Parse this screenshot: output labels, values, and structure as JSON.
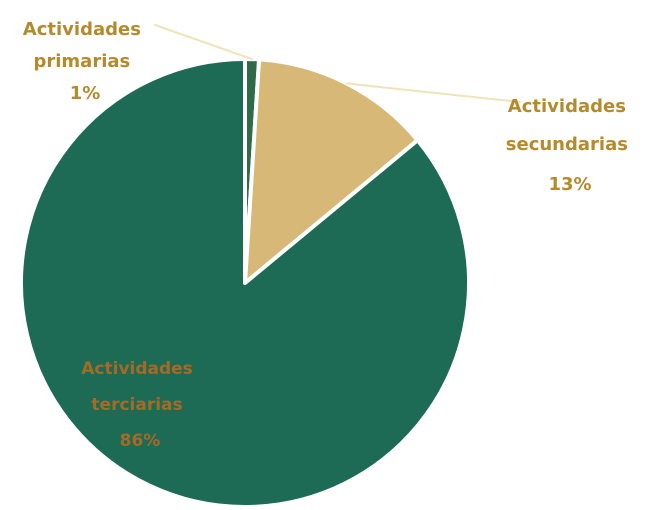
{
  "chart_data": {
    "type": "pie",
    "title": "",
    "start_angle_deg": 0,
    "direction": "clockwise",
    "slices": [
      {
        "label_lines": [
          "Actividades",
          "primarias"
        ],
        "value": 1,
        "value_label": "1%",
        "color": "#2f6b49",
        "label_color": "#b58a2b"
      },
      {
        "label_lines": [
          "Actividades",
          "secundarias"
        ],
        "value": 13,
        "value_label": "13%",
        "color": "#d8b877",
        "label_color": "#b58a2b"
      },
      {
        "label_lines": [
          "Actividades",
          "terciarias",
          ""
        ],
        "value": 86,
        "value_label": "86%",
        "color": "#1e6b55",
        "label_color": "#b46a22"
      }
    ]
  },
  "colors": {
    "slice_border": "#ffffff",
    "leader_line": "#efe3b8",
    "background": "#ffffff"
  }
}
